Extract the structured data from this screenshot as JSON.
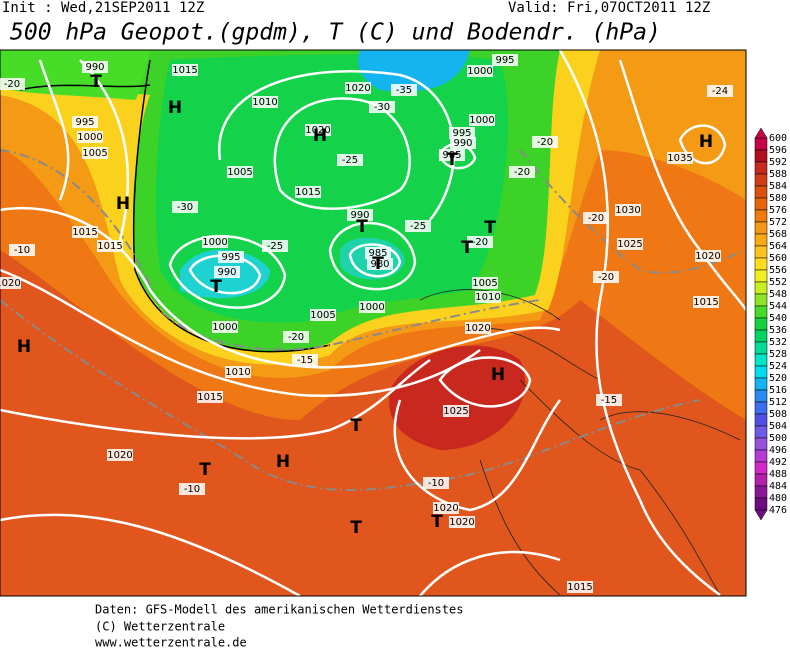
{
  "header": {
    "init": "Init : Wed,21SEP2011 12Z",
    "valid": "Valid: Fri,07OCT2011 12Z",
    "title": "500 hPa Geopot.(gpdm), T (C) und Bodendr. (hPa)"
  },
  "footer": [
    "Daten: GFS-Modell des amerikanischen Wetterdienstes",
    "(C) Wetterzentrale",
    "www.wetterzentrale.de"
  ],
  "colorbar": {
    "levels": [
      600,
      596,
      592,
      588,
      584,
      580,
      576,
      572,
      568,
      564,
      560,
      556,
      552,
      548,
      544,
      540,
      536,
      532,
      528,
      524,
      520,
      516,
      512,
      508,
      504,
      500,
      496,
      492,
      488,
      484,
      480,
      476
    ],
    "colors": [
      "#c8004a",
      "#b40f1e",
      "#c8281e",
      "#d23c14",
      "#dc500f",
      "#e6640a",
      "#f07a0a",
      "#f59614",
      "#faaa14",
      "#ffc31e",
      "#ffdc1e",
      "#f0f01e",
      "#c8f01e",
      "#8ce628",
      "#46dc28",
      "#14d23c",
      "#00d264",
      "#00dc96",
      "#00e6c8",
      "#00dcf0",
      "#14b4f0",
      "#288cf0",
      "#3c6ef0",
      "#5050e6",
      "#6e5ae6",
      "#9650dc",
      "#b43cd2",
      "#d228c8",
      "#b41eaa",
      "#8c1496",
      "#6e0a82"
    ]
  },
  "isobar_labels": [
    "990",
    "1015",
    "995",
    "1000",
    "1005",
    "1010",
    "1020",
    "1020",
    "1000",
    "995",
    "1000",
    "995",
    "990",
    "985",
    "1005",
    "1015",
    "-30",
    "990",
    "-25",
    "1000",
    "995",
    "990",
    "985",
    "980",
    "1015",
    "1015",
    "-10",
    "1020",
    "-20",
    "1000",
    "1010",
    "1015",
    "1005",
    "1000",
    "1010",
    "1005",
    "-15",
    "1020",
    "1025",
    "1025",
    "1030",
    "1035",
    "1020",
    "1015",
    "-20",
    "-20",
    "-15",
    "1020",
    "-10",
    "-10",
    "1020",
    "1020",
    "1015",
    "-25",
    "-20",
    "-20",
    "-20",
    "-20",
    "-35",
    "-30",
    "-25",
    "-24"
  ],
  "pressure_centers": [
    "H",
    "H",
    "H",
    "H",
    "T",
    "T",
    "T",
    "T",
    "T",
    "T",
    "T",
    "H",
    "T",
    "T",
    "H",
    "T",
    "T",
    "H"
  ]
}
